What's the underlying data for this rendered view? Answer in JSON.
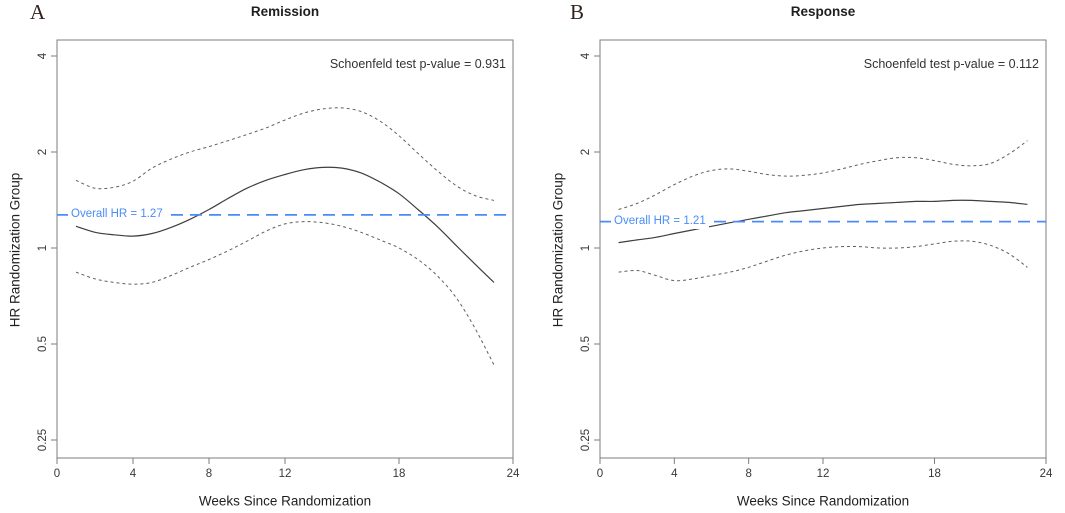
{
  "figure": {
    "background": "#ffffff",
    "accent_blue": "#4a8cf5",
    "estimate_color": "#3f3f3f",
    "ci_color": "#5f5f5f",
    "frame_color": "#7d7d7d",
    "text_color": "#1f1f1f"
  },
  "chart_data": [
    {
      "type": "line",
      "panel_label": "A",
      "title": "Remission",
      "annotation": "Schoenfeld test p-value = 0.931",
      "overall_hr": 1.27,
      "overall_hr_label": "Overall HR = 1.27",
      "xlabel": "Weeks Since Randomization",
      "ylabel": "HR Randomization Group",
      "x_ticks": [
        0,
        4,
        8,
        12,
        18,
        24
      ],
      "y_ticks": [
        4,
        2,
        1,
        0.5,
        0.25
      ],
      "xlim": [
        0,
        24
      ],
      "ylim": [
        0.22,
        4.5
      ],
      "y_scale": "log2",
      "grid": false,
      "legend": "none",
      "weeks": [
        1,
        2,
        3,
        4,
        5,
        6,
        7,
        8,
        9,
        10,
        11,
        12,
        13,
        14,
        15,
        16,
        17,
        18,
        19,
        20,
        21,
        22,
        23
      ],
      "series": [
        {
          "name": "HR estimate",
          "style": "solid",
          "values": [
            1.17,
            1.12,
            1.1,
            1.09,
            1.11,
            1.16,
            1.23,
            1.32,
            1.43,
            1.54,
            1.63,
            1.7,
            1.76,
            1.79,
            1.78,
            1.72,
            1.61,
            1.48,
            1.32,
            1.17,
            1.02,
            0.89,
            0.78
          ]
        },
        {
          "name": "Upper 95% CI",
          "style": "dashed",
          "values": [
            1.63,
            1.54,
            1.55,
            1.62,
            1.78,
            1.9,
            2.0,
            2.08,
            2.17,
            2.27,
            2.38,
            2.52,
            2.65,
            2.73,
            2.75,
            2.68,
            2.5,
            2.25,
            1.98,
            1.75,
            1.57,
            1.46,
            1.41
          ]
        },
        {
          "name": "Lower 95% CI",
          "style": "dashed",
          "values": [
            0.84,
            0.8,
            0.78,
            0.77,
            0.78,
            0.82,
            0.87,
            0.92,
            0.98,
            1.05,
            1.13,
            1.19,
            1.21,
            1.2,
            1.17,
            1.12,
            1.06,
            1.0,
            0.92,
            0.82,
            0.7,
            0.56,
            0.43
          ]
        }
      ]
    },
    {
      "type": "line",
      "panel_label": "B",
      "title": "Response",
      "annotation": "Schoenfeld test p-value = 0.112",
      "overall_hr": 1.21,
      "overall_hr_label": "Overall HR = 1.21",
      "xlabel": "Weeks Since Randomization",
      "ylabel": "HR Randomization Group",
      "x_ticks": [
        0,
        4,
        8,
        12,
        18,
        24
      ],
      "y_ticks": [
        4,
        2,
        1,
        0.5,
        0.25
      ],
      "xlim": [
        0,
        24
      ],
      "ylim": [
        0.22,
        4.5
      ],
      "y_scale": "log2",
      "grid": false,
      "legend": "none",
      "weeks": [
        1,
        2,
        3,
        4,
        5,
        6,
        7,
        8,
        9,
        10,
        11,
        12,
        13,
        14,
        15,
        16,
        17,
        18,
        19,
        20,
        21,
        22,
        23
      ],
      "series": [
        {
          "name": "HR estimate",
          "style": "solid",
          "values": [
            1.04,
            1.06,
            1.08,
            1.11,
            1.14,
            1.17,
            1.2,
            1.23,
            1.26,
            1.29,
            1.31,
            1.33,
            1.35,
            1.37,
            1.38,
            1.39,
            1.4,
            1.4,
            1.41,
            1.41,
            1.4,
            1.39,
            1.37
          ]
        },
        {
          "name": "Upper 95% CI",
          "style": "dashed",
          "values": [
            1.32,
            1.38,
            1.47,
            1.58,
            1.68,
            1.75,
            1.77,
            1.74,
            1.7,
            1.68,
            1.69,
            1.72,
            1.77,
            1.83,
            1.88,
            1.92,
            1.92,
            1.88,
            1.83,
            1.81,
            1.84,
            1.97,
            2.17
          ]
        },
        {
          "name": "Lower 95% CI",
          "style": "dashed",
          "values": [
            0.84,
            0.85,
            0.82,
            0.79,
            0.8,
            0.82,
            0.84,
            0.87,
            0.91,
            0.95,
            0.98,
            1.0,
            1.01,
            1.01,
            1.0,
            1.0,
            1.01,
            1.03,
            1.05,
            1.05,
            1.02,
            0.96,
            0.87
          ]
        }
      ]
    }
  ]
}
